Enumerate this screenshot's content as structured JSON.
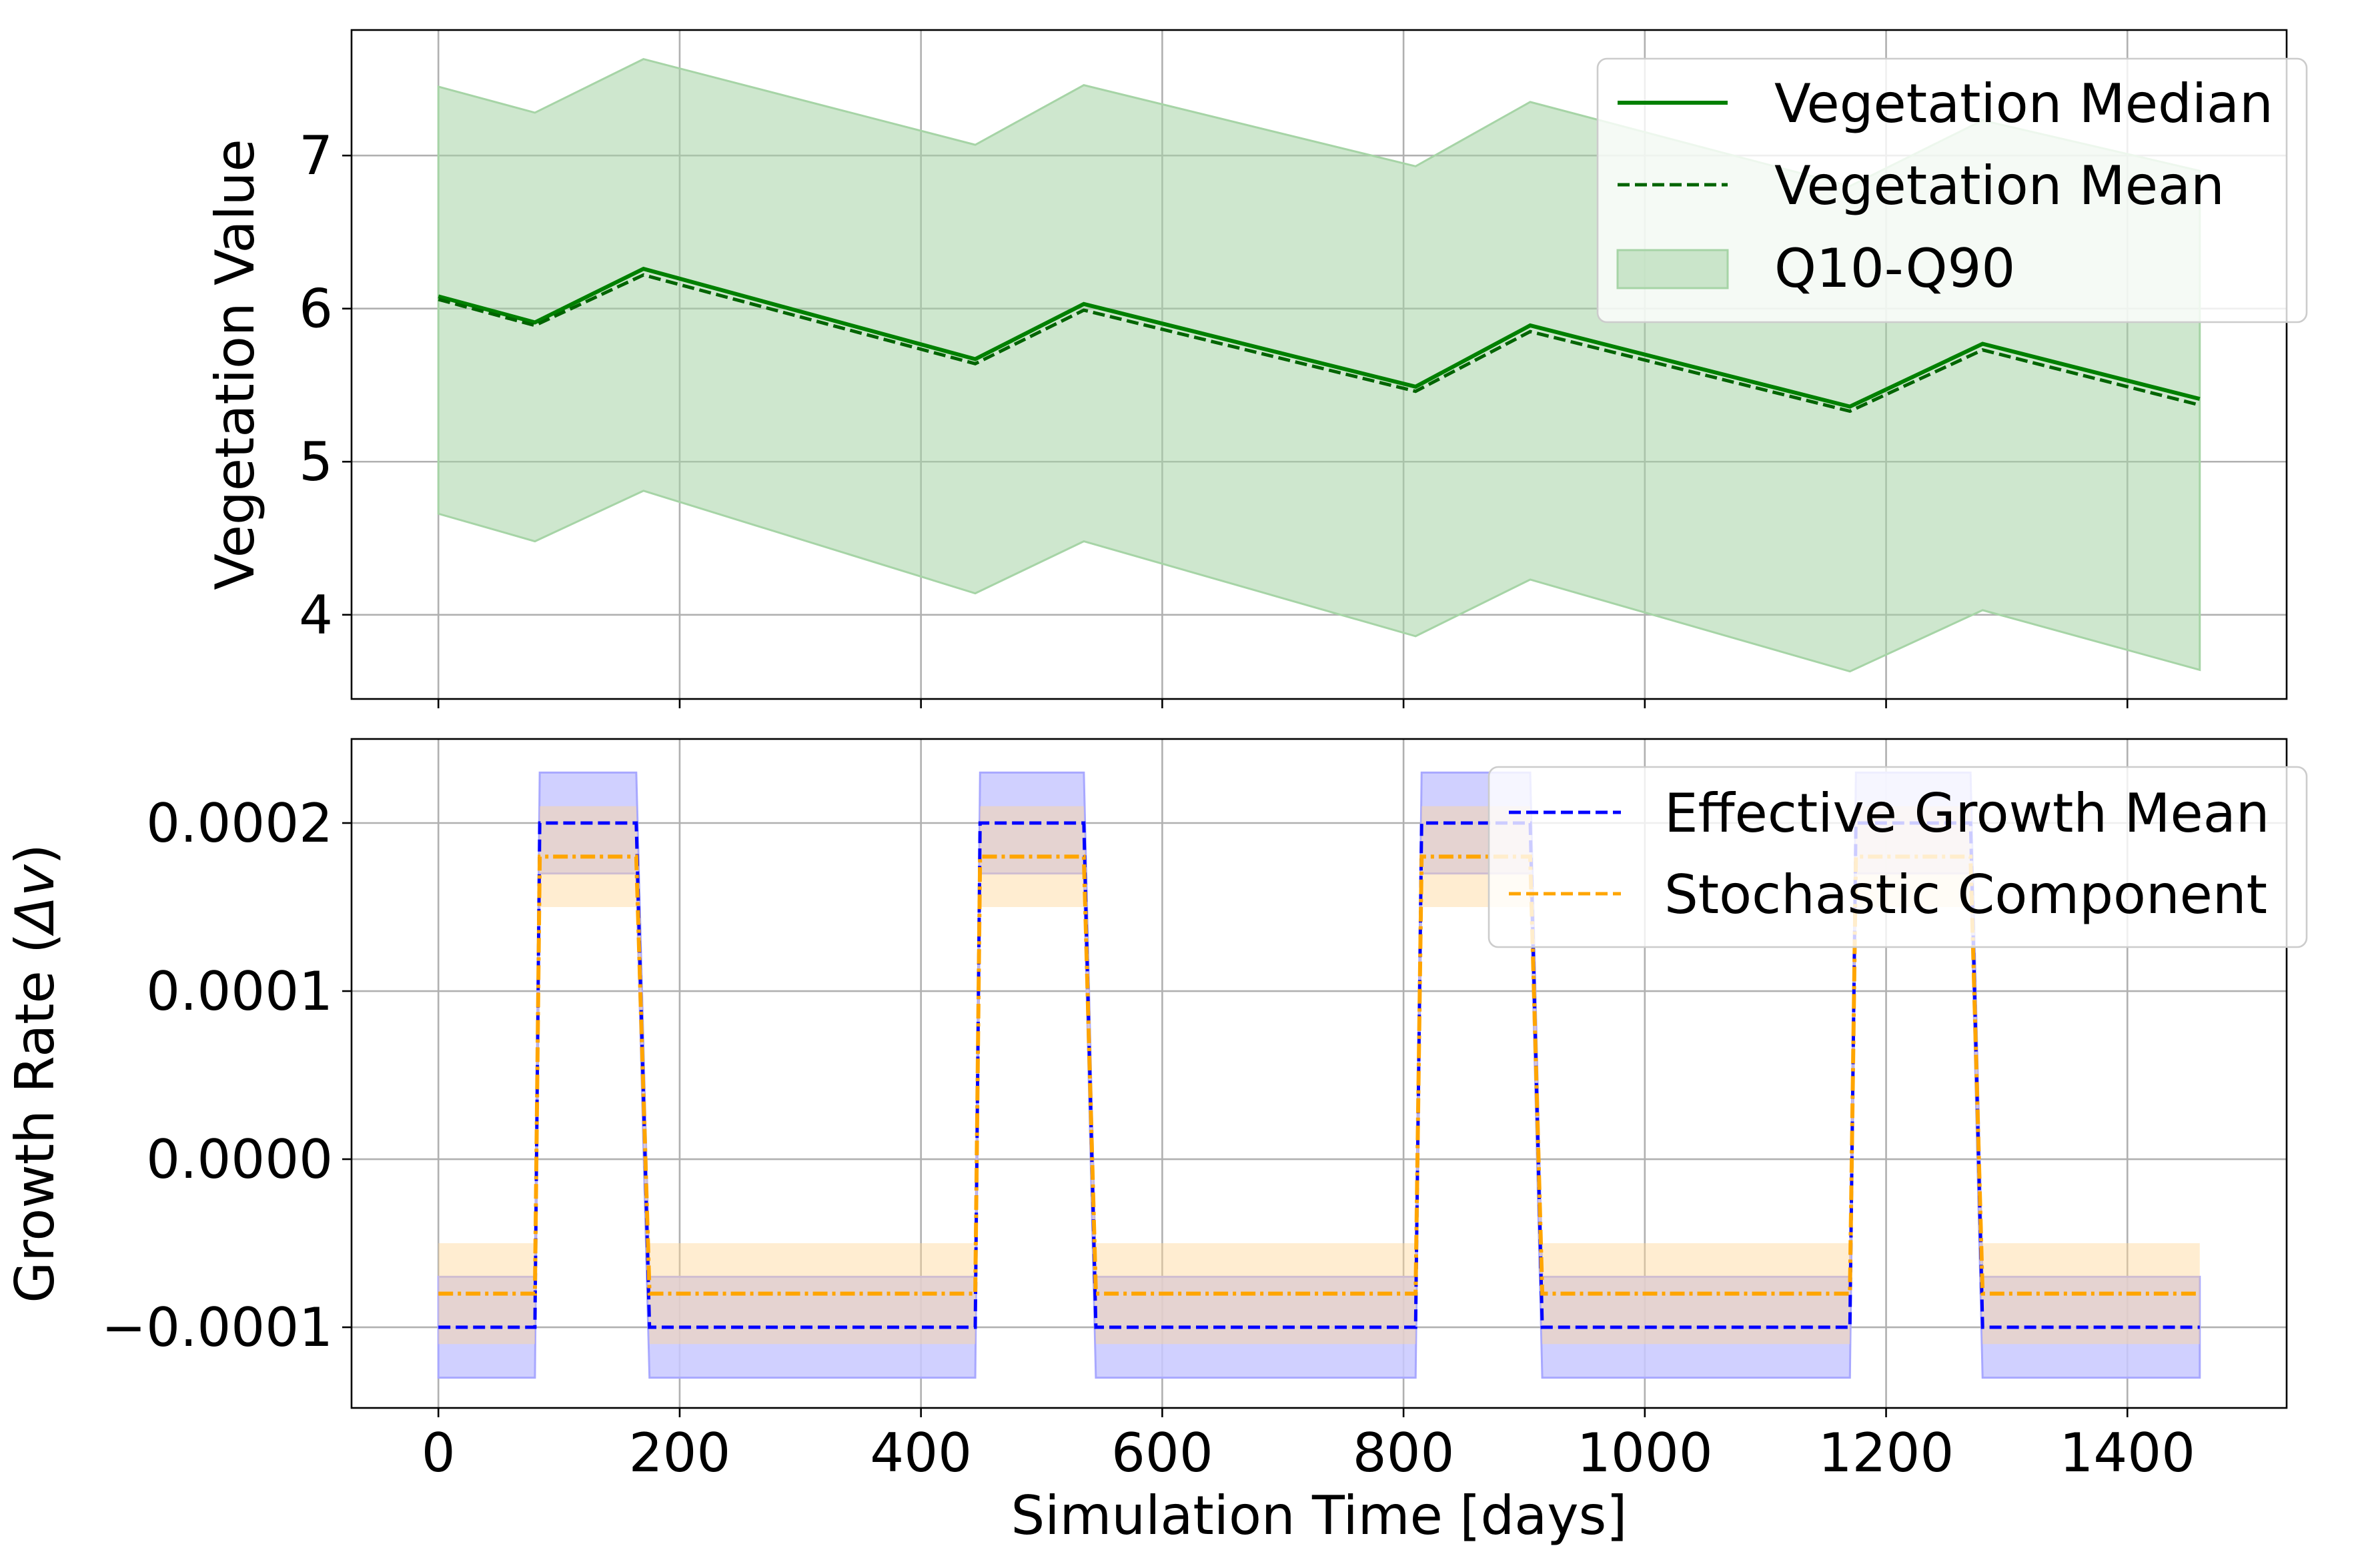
{
  "chart_data": [
    {
      "type": "line",
      "xlabel": "",
      "ylabel": "Vegetation Value",
      "xlim": [
        -72,
        1532
      ],
      "ylim": [
        3.45,
        7.82
      ],
      "xticks": [
        0,
        200,
        400,
        600,
        800,
        1000,
        1200,
        1400
      ],
      "xtick_labels": [
        "",
        "",
        "",
        "",
        "",
        "",
        "",
        ""
      ],
      "yticks": [
        4,
        5,
        6,
        7
      ],
      "ytick_labels": [
        "4",
        "5",
        "6",
        "7"
      ],
      "grid": true,
      "legend_position": "top-right",
      "colors": {
        "line": "#008000",
        "band": "#a6d4a6"
      },
      "series": [
        {
          "name": "Vegetation Median",
          "style": "solid",
          "x": [
            0,
            80,
            170,
            445,
            535,
            810,
            905,
            1170,
            1280,
            1460
          ],
          "y": [
            6.08,
            5.91,
            6.26,
            5.67,
            6.03,
            5.49,
            5.89,
            5.36,
            5.77,
            5.41
          ]
        },
        {
          "name": "Vegetation Mean",
          "style": "dashed",
          "x": [
            0,
            80,
            170,
            445,
            535,
            810,
            905,
            1170,
            1280,
            1460
          ],
          "y": [
            6.06,
            5.89,
            6.22,
            5.64,
            5.99,
            5.46,
            5.85,
            5.33,
            5.73,
            5.37
          ]
        },
        {
          "name": "Q10-Q90",
          "style": "band",
          "x": [
            0,
            80,
            170,
            445,
            535,
            810,
            905,
            1170,
            1280,
            1460
          ],
          "lower": [
            4.66,
            4.48,
            4.81,
            4.14,
            4.48,
            3.86,
            4.23,
            3.63,
            4.03,
            3.64
          ],
          "upper": [
            7.45,
            7.28,
            7.63,
            7.07,
            7.46,
            6.93,
            7.35,
            6.8,
            7.23,
            6.9
          ]
        }
      ]
    },
    {
      "type": "line",
      "xlabel": "Simulation Time [days]",
      "ylabel": "Growth Rate (Δv)",
      "ylabel_main": "Growth Rate (",
      "ylabel_sym": "Δv",
      "ylabel_close": ")",
      "xlim": [
        -72,
        1532
      ],
      "ylim": [
        -0.000148,
        0.00025
      ],
      "xticks": [
        0,
        200,
        400,
        600,
        800,
        1000,
        1200,
        1400
      ],
      "xtick_labels": [
        "0",
        "200",
        "400",
        "600",
        "800",
        "1000",
        "1200",
        "1400"
      ],
      "yticks": [
        -0.0001,
        0.0,
        0.0001,
        0.0002
      ],
      "ytick_labels": [
        "−0.0001",
        "0.0000",
        "0.0001",
        "0.0002"
      ],
      "grid": true,
      "legend_position": "top-right",
      "colors": {
        "growth": "#0000ff",
        "growth_band": "#c8c8ff",
        "stoch": "#ffa500",
        "stoch_band": "#ffe9c4"
      },
      "series": [
        {
          "name": "Effective Growth Mean",
          "style": "dashed",
          "x": [
            0,
            80,
            84,
            164,
            175,
            445,
            449,
            535,
            545,
            810,
            815,
            905,
            915,
            1170,
            1175,
            1270,
            1280,
            1460
          ],
          "y": [
            -0.0001,
            -0.0001,
            0.0002,
            0.0002,
            -0.0001,
            -0.0001,
            0.0002,
            0.0002,
            -0.0001,
            -0.0001,
            0.0002,
            0.0002,
            -0.0001,
            -0.0001,
            0.0002,
            0.0002,
            -0.0001,
            -0.0001
          ],
          "lower": [
            -0.00013,
            -0.00013,
            0.00017,
            0.00017,
            -0.00013,
            -0.00013,
            0.00017,
            0.00017,
            -0.00013,
            -0.00013,
            0.00017,
            0.00017,
            -0.00013,
            -0.00013,
            0.00017,
            0.00017,
            -0.00013,
            -0.00013
          ],
          "upper": [
            -7e-05,
            -7e-05,
            0.00023,
            0.00023,
            -7e-05,
            -7e-05,
            0.00023,
            0.00023,
            -7e-05,
            -7e-05,
            0.00023,
            0.00023,
            -7e-05,
            -7e-05,
            0.00023,
            0.00023,
            -7e-05,
            -7e-05
          ]
        },
        {
          "name": "Stochastic Component",
          "style": "dashdot",
          "x": [
            0,
            80,
            84,
            164,
            175,
            445,
            449,
            535,
            545,
            810,
            815,
            905,
            915,
            1170,
            1175,
            1270,
            1280,
            1460
          ],
          "y": [
            -8e-05,
            -8e-05,
            0.00018,
            0.00018,
            -8e-05,
            -8e-05,
            0.00018,
            0.00018,
            -8e-05,
            -8e-05,
            0.00018,
            0.00018,
            -8e-05,
            -8e-05,
            0.00018,
            0.00018,
            -8e-05,
            -8e-05
          ],
          "lower": [
            -0.00011,
            -0.00011,
            0.00015,
            0.00015,
            -0.00011,
            -0.00011,
            0.00015,
            0.00015,
            -0.00011,
            -0.00011,
            0.00015,
            0.00015,
            -0.00011,
            -0.00011,
            0.00015,
            0.00015,
            -0.00011,
            -0.00011
          ],
          "upper": [
            -5e-05,
            -5e-05,
            0.00021,
            0.00021,
            -5e-05,
            -5e-05,
            0.00021,
            0.00021,
            -5e-05,
            -5e-05,
            0.00021,
            0.00021,
            -5e-05,
            -5e-05,
            0.00021,
            0.00021,
            -5e-05,
            -5e-05
          ]
        }
      ]
    }
  ]
}
